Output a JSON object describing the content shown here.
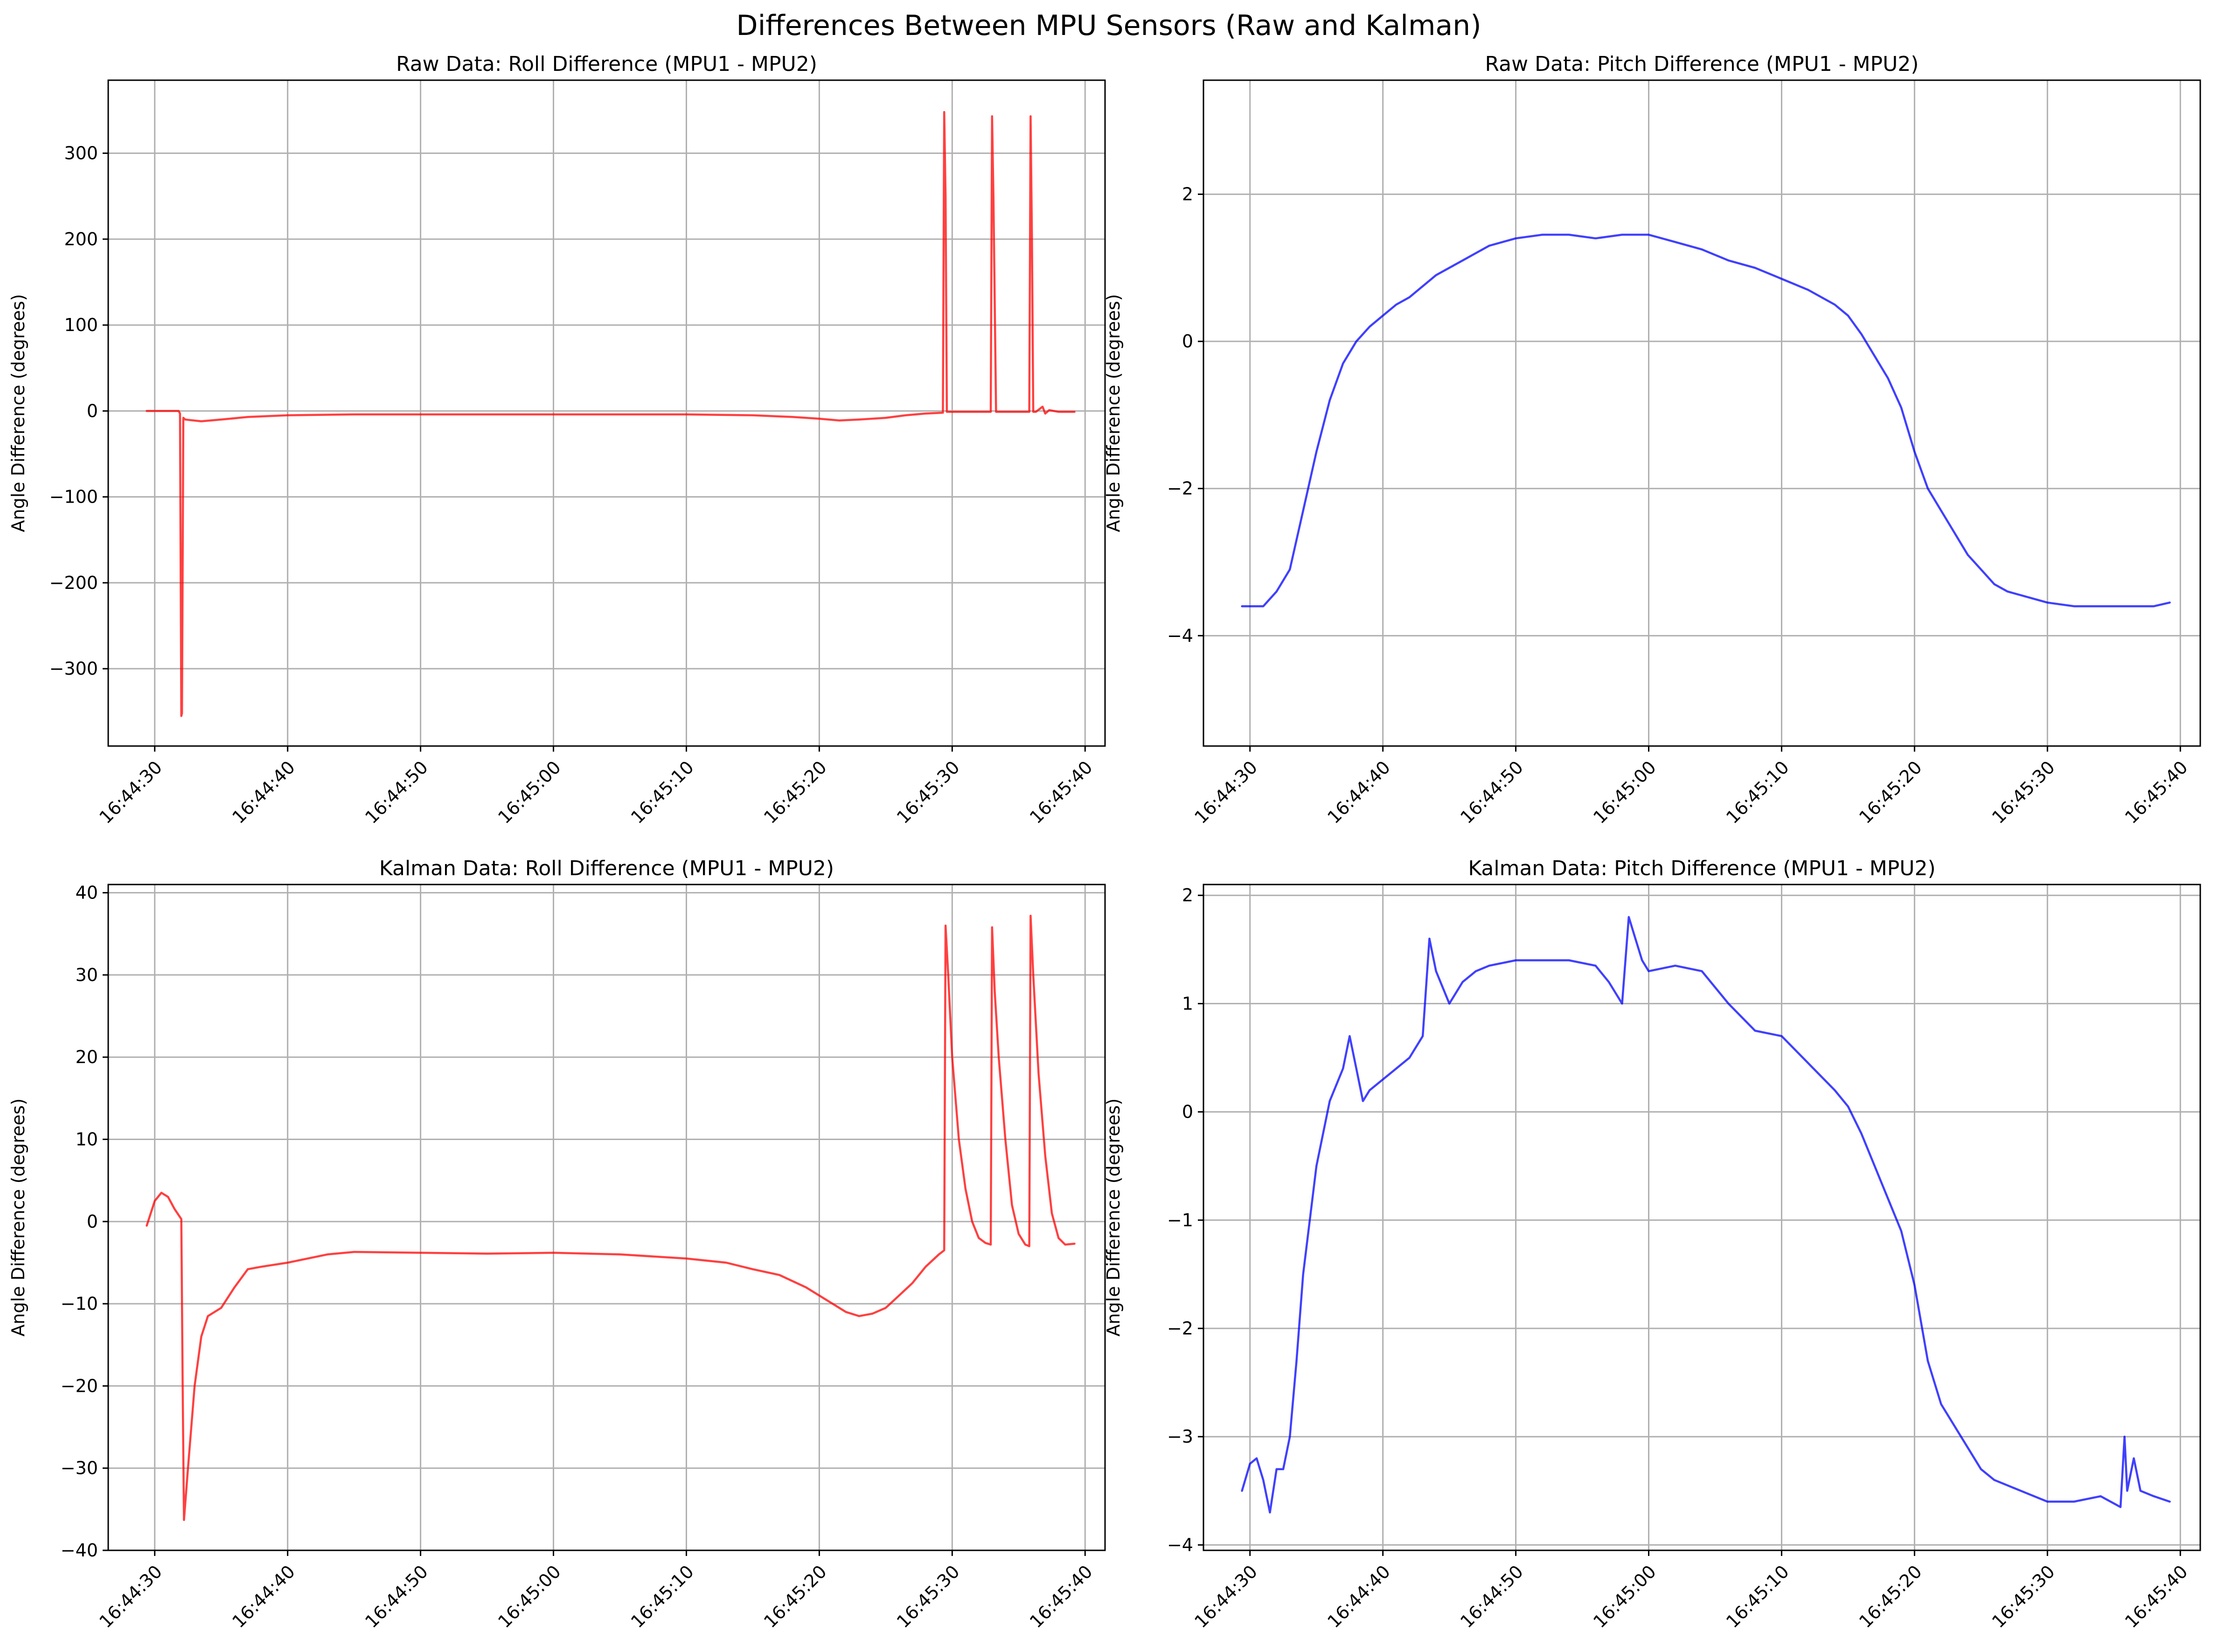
{
  "figure": {
    "title": "Differences Between MPU Sensors (Raw and Kalman)"
  },
  "chart_data": [
    {
      "type": "line",
      "title": "Raw Data: Roll Difference (MPU1 - MPU2)",
      "xlabel": "",
      "ylabel": "Angle Difference (degrees)",
      "color": "#ff0000",
      "x_tick_labels": [
        "16:44:30",
        "16:44:40",
        "16:44:50",
        "16:45:00",
        "16:45:10",
        "16:45:20",
        "16:45:30",
        "16:45:40"
      ],
      "x_ticks_seconds_after": [
        30,
        40,
        50,
        60,
        70,
        80,
        90,
        100
      ],
      "xlim_seconds": [
        26.5,
        101.5
      ],
      "ylim": [
        -390,
        385
      ],
      "y_ticks": [
        -300,
        -200,
        -100,
        0,
        100,
        200,
        300
      ],
      "grid": true,
      "x": [
        29.4,
        31.8,
        31.9,
        32.0,
        32.05,
        32.15,
        32.3,
        33.5,
        35.0,
        37.0,
        40.0,
        45.0,
        50.0,
        60.0,
        70.0,
        75.0,
        78.0,
        80.0,
        81.5,
        83.0,
        85.0,
        86.5,
        88.0,
        89.3,
        89.4,
        89.5,
        89.6,
        89.7,
        90.5,
        92.5,
        92.9,
        93.0,
        93.1,
        93.3,
        94.5,
        95.8,
        95.9,
        96.0,
        96.1,
        96.3,
        96.8,
        97.0,
        97.3,
        98.0,
        99.2
      ],
      "y": [
        0,
        0,
        -3,
        -355,
        -352,
        -8,
        -10,
        -12,
        -10,
        -7,
        -5,
        -4,
        -4,
        -4,
        -4,
        -5,
        -7,
        -9,
        -11,
        -10,
        -8,
        -5,
        -3,
        -2,
        348,
        250,
        -1,
        -1,
        -1,
        -1,
        -1,
        343,
        250,
        -1,
        -1,
        -1,
        343,
        200,
        -1,
        -1,
        5,
        -3,
        1,
        -1,
        -1
      ]
    },
    {
      "type": "line",
      "title": "Raw Data: Pitch Difference (MPU1 - MPU2)",
      "xlabel": "",
      "ylabel": "Angle Difference (degrees)",
      "color": "#0000ff",
      "x_tick_labels": [
        "16:44:30",
        "16:44:40",
        "16:44:50",
        "16:45:00",
        "16:45:10",
        "16:45:20",
        "16:45:30",
        "16:45:40"
      ],
      "x_ticks_seconds_after": [
        30,
        40,
        50,
        60,
        70,
        80,
        90,
        100
      ],
      "xlim_seconds": [
        26.5,
        101.5
      ],
      "ylim": [
        -5.5,
        3.55
      ],
      "y_ticks": [
        -4,
        -2,
        0,
        2
      ],
      "grid": true,
      "x": [
        29.4,
        31.0,
        32.0,
        33.0,
        34.0,
        35.0,
        36.0,
        37.0,
        38.0,
        39.0,
        40.0,
        41.0,
        42.0,
        44.0,
        46.0,
        48.0,
        50.0,
        52.0,
        54.0,
        56.0,
        58.0,
        60.0,
        62.0,
        64.0,
        66.0,
        68.0,
        70.0,
        72.0,
        74.0,
        75.0,
        76.0,
        77.0,
        78.0,
        79.0,
        80.0,
        81.0,
        82.0,
        83.0,
        84.0,
        85.0,
        86.0,
        87.0,
        88.0,
        89.0,
        90.0,
        92.0,
        94.0,
        96.0,
        98.0,
        99.2
      ],
      "y": [
        -3.6,
        -3.6,
        -3.4,
        -3.1,
        -2.3,
        -1.5,
        -0.8,
        -0.3,
        0.0,
        0.2,
        0.35,
        0.5,
        0.6,
        0.9,
        1.1,
        1.3,
        1.4,
        1.45,
        1.45,
        1.4,
        1.45,
        1.45,
        1.35,
        1.25,
        1.1,
        1.0,
        0.85,
        0.7,
        0.5,
        0.35,
        0.1,
        -0.2,
        -0.5,
        -0.9,
        -1.5,
        -2.0,
        -2.3,
        -2.6,
        -2.9,
        -3.1,
        -3.3,
        -3.4,
        -3.45,
        -3.5,
        -3.55,
        -3.6,
        -3.6,
        -3.6,
        -3.6,
        -3.55
      ]
    },
    {
      "type": "line",
      "title": "Kalman Data: Roll Difference (MPU1 - MPU2)",
      "xlabel": "",
      "ylabel": "Angle Difference (degrees)",
      "color": "#ff0000",
      "x_tick_labels": [
        "16:44:30",
        "16:44:40",
        "16:44:50",
        "16:45:00",
        "16:45:10",
        "16:45:20",
        "16:45:30",
        "16:45:40"
      ],
      "x_ticks_seconds_after": [
        30,
        40,
        50,
        60,
        70,
        80,
        90,
        100
      ],
      "xlim_seconds": [
        26.5,
        101.5
      ],
      "ylim": [
        -40,
        41
      ],
      "y_ticks": [
        -40,
        -30,
        -20,
        -10,
        0,
        10,
        20,
        30,
        40
      ],
      "grid": true,
      "x": [
        29.4,
        30.0,
        30.5,
        31.0,
        31.5,
        32.0,
        32.1,
        32.2,
        32.5,
        33.0,
        33.5,
        34.0,
        35.0,
        36.0,
        37.0,
        38.0,
        40.0,
        43.0,
        45.0,
        50.0,
        55.0,
        60.0,
        65.0,
        70.0,
        73.0,
        75.0,
        77.0,
        79.0,
        81.0,
        82.0,
        83.0,
        84.0,
        85.0,
        86.0,
        87.0,
        88.0,
        89.0,
        89.4,
        89.5,
        89.7,
        90.0,
        90.5,
        91.0,
        91.5,
        92.0,
        92.5,
        92.9,
        93.0,
        93.2,
        93.5,
        94.0,
        94.5,
        95.0,
        95.5,
        95.8,
        95.9,
        96.1,
        96.5,
        97.0,
        97.5,
        98.0,
        98.5,
        99.2
      ],
      "y": [
        -0.5,
        2.5,
        3.5,
        3.0,
        1.5,
        0.3,
        -20.0,
        -36.3,
        -30.0,
        -20.0,
        -14.0,
        -11.5,
        -10.5,
        -8.0,
        -5.8,
        -5.5,
        -5.0,
        -4.0,
        -3.7,
        -3.8,
        -3.9,
        -3.8,
        -4.0,
        -4.5,
        -5.0,
        -5.8,
        -6.5,
        -8.0,
        -10.0,
        -11.0,
        -11.5,
        -11.2,
        -10.5,
        -9.0,
        -7.5,
        -5.5,
        -4.0,
        -3.5,
        36.0,
        30.0,
        20.0,
        10.0,
        4.0,
        0.0,
        -2.0,
        -2.6,
        -2.8,
        35.8,
        28.0,
        20.0,
        10.0,
        2.0,
        -1.5,
        -2.8,
        -3.0,
        37.2,
        30.0,
        18.0,
        8.0,
        1.0,
        -2.0,
        -2.8,
        -2.7
      ]
    },
    {
      "type": "line",
      "title": "Kalman Data: Pitch Difference (MPU1 - MPU2)",
      "xlabel": "",
      "ylabel": "Angle Difference (degrees)",
      "color": "#0000ff",
      "x_tick_labels": [
        "16:44:30",
        "16:44:40",
        "16:44:50",
        "16:45:00",
        "16:45:10",
        "16:45:20",
        "16:45:30",
        "16:45:40"
      ],
      "x_ticks_seconds_after": [
        30,
        40,
        50,
        60,
        70,
        80,
        90,
        100
      ],
      "xlim_seconds": [
        26.5,
        101.5
      ],
      "ylim": [
        -4.05,
        2.1
      ],
      "y_ticks": [
        -4,
        -3,
        -2,
        -1,
        0,
        1,
        2
      ],
      "grid": true,
      "x": [
        29.4,
        30.0,
        30.5,
        31.0,
        31.5,
        32.0,
        32.5,
        33.0,
        33.5,
        34.0,
        35.0,
        36.0,
        37.0,
        37.5,
        38.0,
        38.5,
        39.0,
        40.0,
        41.0,
        42.0,
        43.0,
        43.5,
        44.0,
        45.0,
        46.0,
        47.0,
        48.0,
        50.0,
        52.0,
        54.0,
        56.0,
        57.0,
        58.0,
        58.5,
        59.0,
        59.5,
        60.0,
        62.0,
        64.0,
        66.0,
        68.0,
        70.0,
        72.0,
        74.0,
        75.0,
        76.0,
        77.0,
        78.0,
        79.0,
        80.0,
        81.0,
        82.0,
        83.0,
        84.0,
        85.0,
        86.0,
        87.0,
        88.0,
        89.0,
        90.0,
        92.0,
        94.0,
        95.5,
        95.8,
        96.0,
        96.5,
        97.0,
        98.0,
        99.2
      ],
      "y": [
        -3.5,
        -3.25,
        -3.2,
        -3.4,
        -3.7,
        -3.3,
        -3.3,
        -3.0,
        -2.3,
        -1.5,
        -0.5,
        0.1,
        0.4,
        0.7,
        0.4,
        0.1,
        0.2,
        0.3,
        0.4,
        0.5,
        0.7,
        1.6,
        1.3,
        1.0,
        1.2,
        1.3,
        1.35,
        1.4,
        1.4,
        1.4,
        1.35,
        1.2,
        1.0,
        1.8,
        1.6,
        1.4,
        1.3,
        1.35,
        1.3,
        1.0,
        0.75,
        0.7,
        0.45,
        0.2,
        0.05,
        -0.2,
        -0.5,
        -0.8,
        -1.1,
        -1.6,
        -2.3,
        -2.7,
        -2.9,
        -3.1,
        -3.3,
        -3.4,
        -3.45,
        -3.5,
        -3.55,
        -3.6,
        -3.6,
        -3.55,
        -3.65,
        -3.0,
        -3.5,
        -3.2,
        -3.5,
        -3.55,
        -3.6
      ]
    }
  ]
}
